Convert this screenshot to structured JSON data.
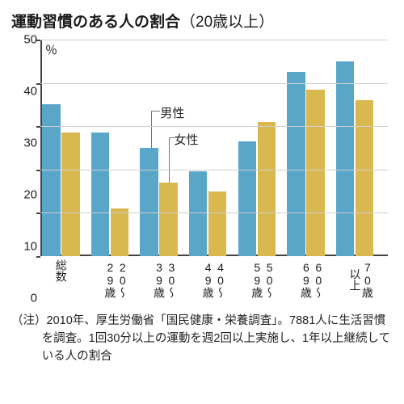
{
  "title_main": "運動習慣のある人の割合",
  "title_sub": "（20歳以上）",
  "title_fontsize": 19,
  "y_unit": "％",
  "chart": {
    "type": "bar",
    "ylim": [
      0,
      50
    ],
    "ytick_step": 10,
    "yticks": [
      0,
      10,
      20,
      30,
      40,
      50
    ],
    "grid_color": "#cfcfcf",
    "axis_color": "#444444",
    "background_color": "#ffffff",
    "categories": [
      "総数",
      "20〜29歳",
      "30〜39歳",
      "40〜49歳",
      "50〜59歳",
      "60〜69歳",
      "70歳以上"
    ],
    "series": [
      {
        "name": "男性",
        "color": "#5aa6c9",
        "values": [
          35,
          28.5,
          25,
          19.5,
          26.5,
          42.5,
          45
        ]
      },
      {
        "name": "女性",
        "color": "#d8b84f",
        "values": [
          28.5,
          11,
          17,
          15,
          31,
          38.5,
          36
        ]
      }
    ],
    "bar_width_pct": 5.2,
    "group_span_pct": 14.1,
    "group_offset_pct": 0.5,
    "gap_within_pct": 0.4,
    "legend": {
      "male_label": "男性",
      "female_label": "女性",
      "male_top_pct": 30,
      "female_top_pct": 42,
      "label_left_pct": 34.5
    }
  },
  "note_text": "（注）2010年、厚生労働省「国民健康・栄養調査」。7881人に生活習慣を調査。1回30分以上の運動を週2回以上実施し、1年以上継続している人の割合"
}
